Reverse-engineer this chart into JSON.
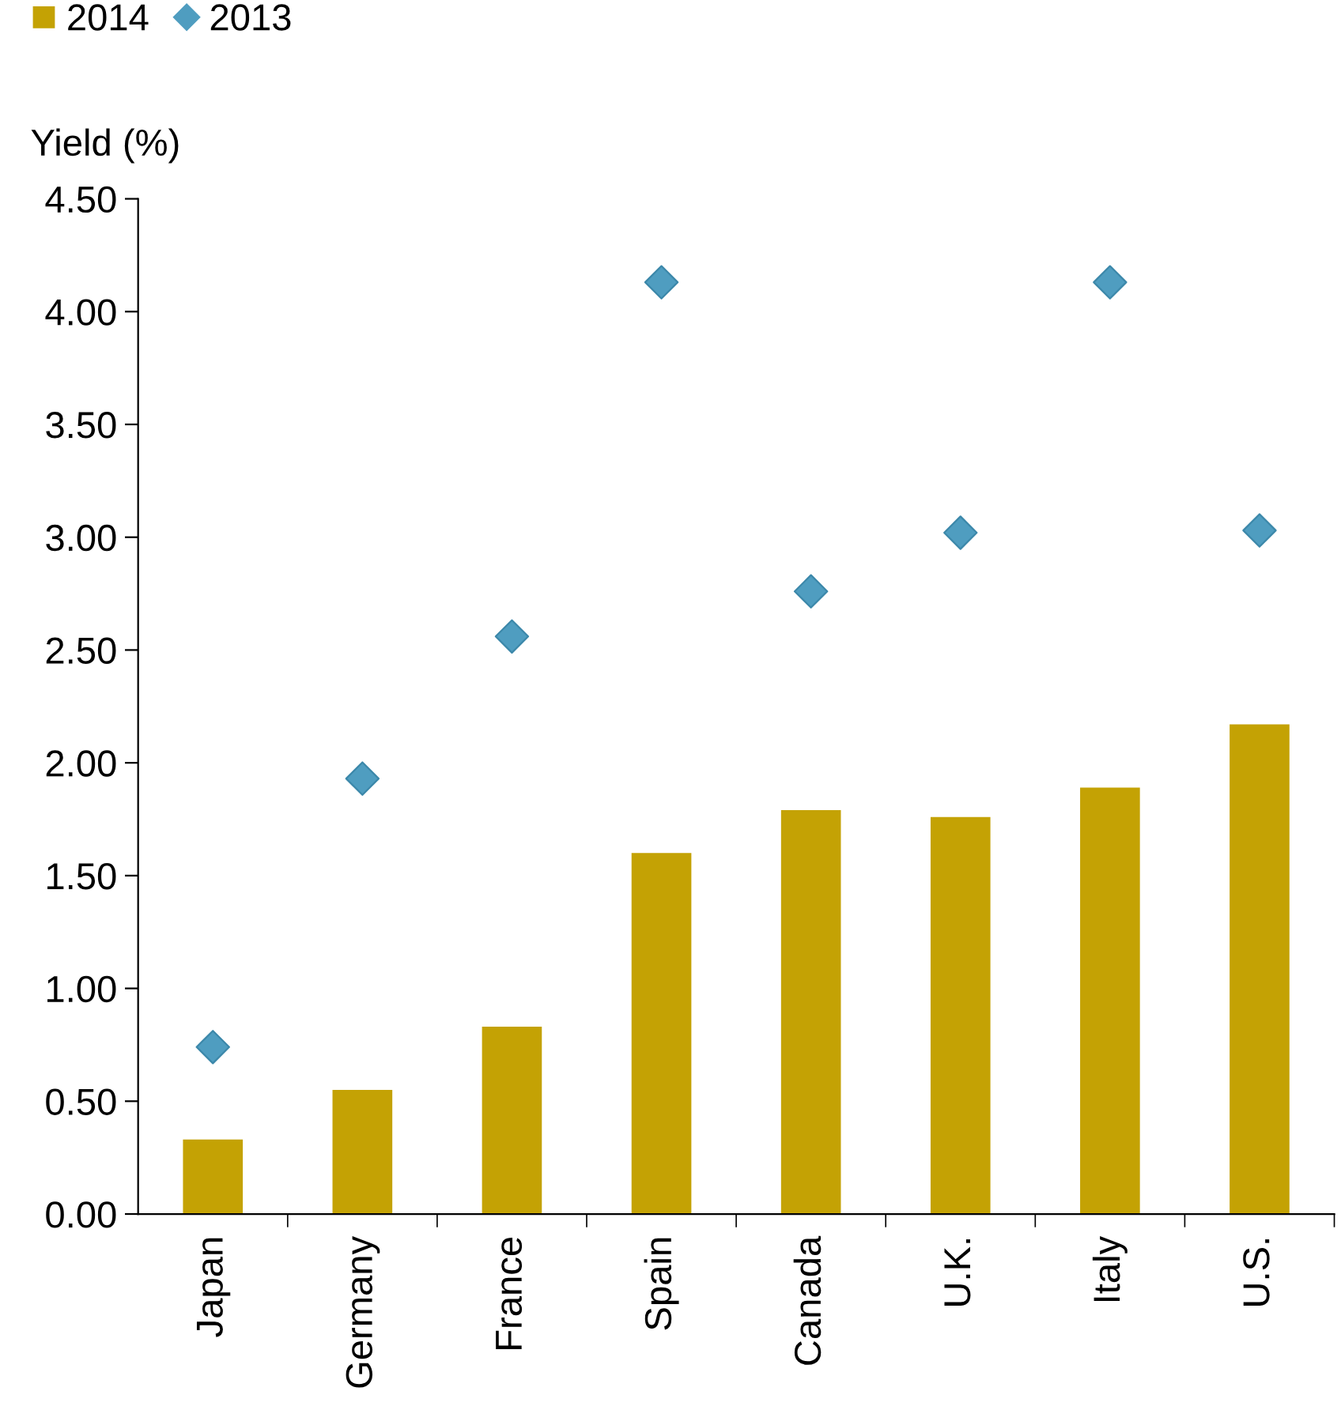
{
  "chart_data": {
    "type": "bar",
    "ylabel": "Yield (%)",
    "categories": [
      "Japan",
      "Germany",
      "France",
      "Spain",
      "Canada",
      "U.K.",
      "Italy",
      "U.S."
    ],
    "series": [
      {
        "name": "2014",
        "color": "#c4a204",
        "values": [
          0.33,
          0.55,
          0.83,
          1.6,
          1.79,
          1.76,
          1.89,
          2.17
        ]
      },
      {
        "name": "2013",
        "type": "scatter",
        "color": "#4f9dc0",
        "marker": "diamond",
        "values": [
          0.74,
          1.93,
          2.56,
          4.13,
          2.76,
          3.02,
          4.13,
          3.03
        ]
      }
    ],
    "ylim": [
      0,
      4.5
    ],
    "yticks": [
      {
        "value": 0,
        "label": "0.00"
      },
      {
        "value": 0.5,
        "label": "0.50"
      },
      {
        "value": 1,
        "label": "1.00"
      },
      {
        "value": 1.5,
        "label": "1.50"
      },
      {
        "value": 2,
        "label": "2.00"
      },
      {
        "value": 2.5,
        "label": "2.50"
      },
      {
        "value": 3,
        "label": "3.00"
      },
      {
        "value": 3.5,
        "label": "3.50"
      },
      {
        "value": 4,
        "label": "4.00"
      },
      {
        "value": 4.5,
        "label": "4.50"
      }
    ],
    "grid": false,
    "legend": "top left"
  }
}
